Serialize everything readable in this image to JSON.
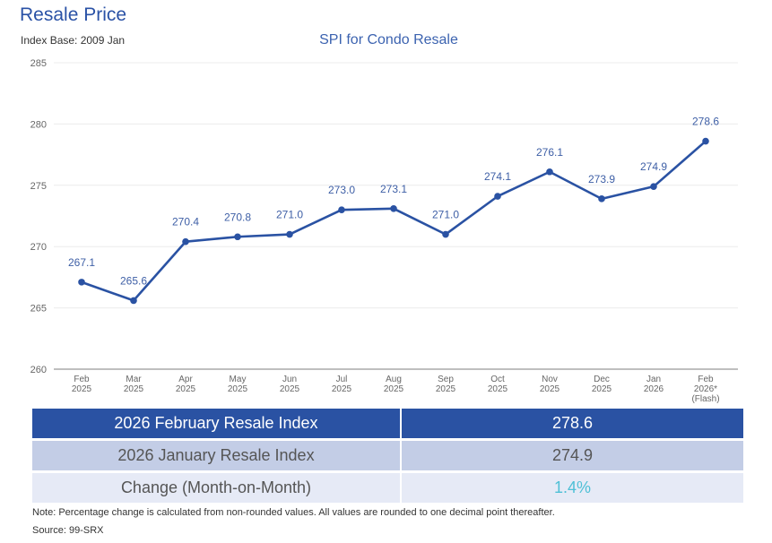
{
  "header": {
    "title": "Resale Price",
    "index_base": "Index Base: 2009 Jan"
  },
  "chart_data": {
    "type": "line",
    "title": "SPI for Condo Resale",
    "xlabel": "",
    "ylabel": "",
    "ylim": [
      260,
      285
    ],
    "yticks": [
      260,
      265,
      270,
      275,
      280,
      285
    ],
    "grid": true,
    "legend": "none",
    "categories": [
      [
        "Feb",
        "2025"
      ],
      [
        "Mar",
        "2025"
      ],
      [
        "Apr",
        "2025"
      ],
      [
        "May",
        "2025"
      ],
      [
        "Jun",
        "2025"
      ],
      [
        "Jul",
        "2025"
      ],
      [
        "Aug",
        "2025"
      ],
      [
        "Sep",
        "2025"
      ],
      [
        "Oct",
        "2025"
      ],
      [
        "Nov",
        "2025"
      ],
      [
        "Dec",
        "2025"
      ],
      [
        "Jan",
        "2026"
      ],
      [
        "Feb",
        "2026*",
        "(Flash)"
      ]
    ],
    "series": [
      {
        "name": "SPI for Condo Resale",
        "color": "#2a52a3",
        "values": [
          267.1,
          265.6,
          270.4,
          270.8,
          271.0,
          273.0,
          273.1,
          271.0,
          274.1,
          276.1,
          273.9,
          274.9,
          278.6
        ],
        "labels": [
          "267.1",
          "265.6",
          "270.4",
          "270.8",
          "271.0",
          "273.0",
          "273.1",
          "271.0",
          "274.1",
          "276.1",
          "273.9",
          "274.9",
          "278.6"
        ]
      }
    ]
  },
  "summary_table": {
    "rows": [
      {
        "label": "2026 February Resale Index",
        "value": "278.6"
      },
      {
        "label": "2026 January Resale Index",
        "value": "274.9"
      },
      {
        "label": "Change (Month-on-Month)",
        "value": "1.4%"
      }
    ]
  },
  "footer": {
    "note": "Note: Percentage change is calculated from non-rounded values.  All values are rounded to one decimal point thereafter.",
    "source": "Source: 99-SRX"
  }
}
